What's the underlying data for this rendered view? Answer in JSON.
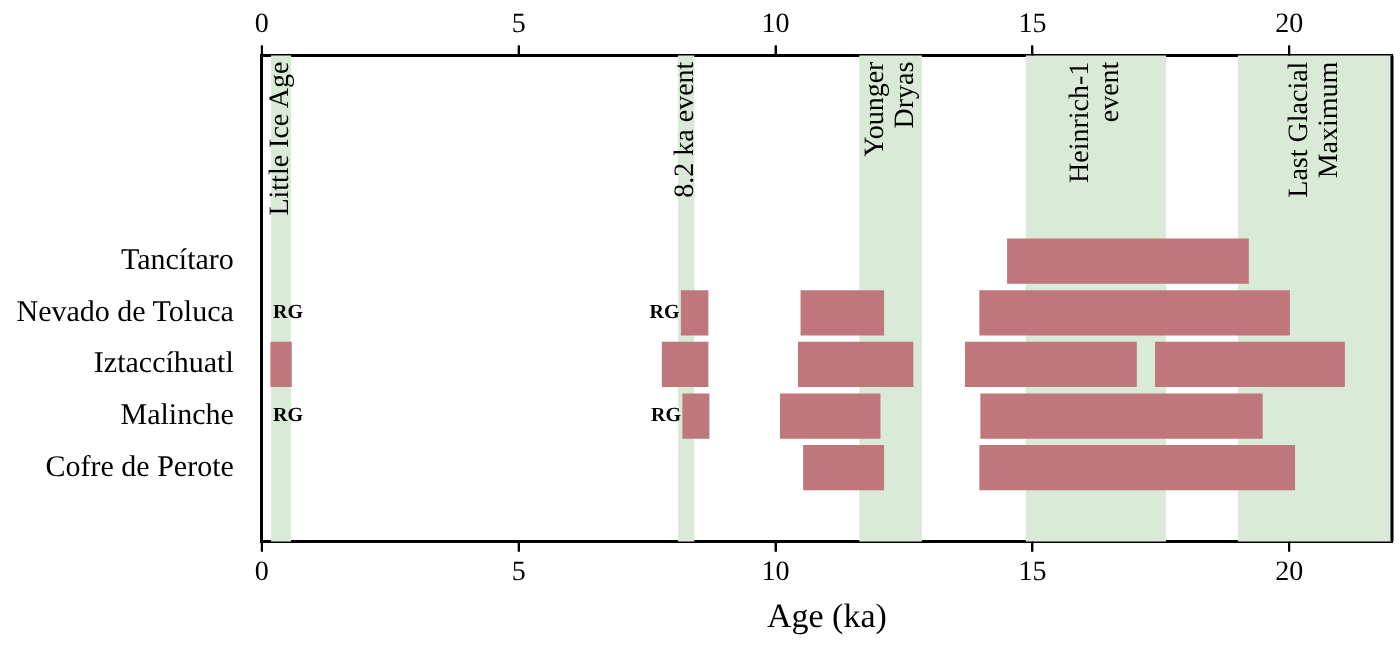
{
  "chart_data": {
    "type": "bar",
    "orientation": "horizontal",
    "xlabel": "Age (ka)",
    "categories": [
      "Tancítaro",
      "Nevado de Toluca",
      "Iztaccíhuatl",
      "Malinche",
      "Cofre de Perote"
    ],
    "series": [
      {
        "color": "#bf777b",
        "base": [
          null,
          null,
          0.18,
          null,
          null
        ],
        "values": [
          null,
          null,
          0.39,
          null,
          null
        ]
      },
      {
        "color": "#bf777b",
        "base": [
          null,
          8.17,
          7.8,
          8.2,
          null
        ],
        "values": [
          null,
          0.51,
          0.88,
          0.5,
          null
        ]
      },
      {
        "color": "#bf777b",
        "base": [
          null,
          10.5,
          10.45,
          10.1,
          10.55
        ],
        "values": [
          null,
          1.6,
          2.22,
          1.93,
          1.55
        ]
      },
      {
        "color": "#bf777b",
        "base": [
          14.52,
          13.98,
          13.7,
          14.0,
          13.98
        ],
        "values": [
          4.68,
          6.02,
          3.32,
          5.47,
          6.12
        ]
      },
      {
        "color": "#bf777b",
        "base": [
          null,
          null,
          17.4,
          null,
          null
        ],
        "values": [
          null,
          null,
          3.67,
          null,
          null
        ]
      }
    ],
    "xlim": [
      0,
      22
    ],
    "xticks": [
      0,
      5,
      10,
      15,
      20
    ],
    "x2lim": [
      0,
      22
    ],
    "x2ticks": [
      0,
      5,
      10,
      15,
      20
    ],
    "bands": [
      {
        "axis": "x",
        "from": 0.18,
        "to": 0.57,
        "label": "Little Ice Age",
        "color": "#d9ead6"
      },
      {
        "axis": "x",
        "from": 8.1,
        "to": 8.42,
        "label": "8.2 ka event",
        "color": "#d9ead6"
      },
      {
        "axis": "x",
        "from": 11.63,
        "to": 12.85,
        "label": "Younger\nDryas",
        "color": "#d9ead6"
      },
      {
        "axis": "x",
        "from": 14.87,
        "to": 17.6,
        "label": "Heinrich-1\nevent",
        "color": "#d9ead6"
      },
      {
        "axis": "x",
        "from": 19.0,
        "to": 22,
        "label": "Last Glacial\nMaximum",
        "color": "#d9ead6"
      }
    ],
    "annotations": [
      {
        "text": "RG",
        "x": 0.18,
        "y": "Nevado de Toluca"
      },
      {
        "text": "RG",
        "x": 8.17,
        "y": "Nevado de Toluca"
      },
      {
        "text": "RG",
        "x": 0.18,
        "y": "Malinche"
      },
      {
        "text": "RG",
        "x": 8.2,
        "y": "Malinche"
      }
    ]
  }
}
